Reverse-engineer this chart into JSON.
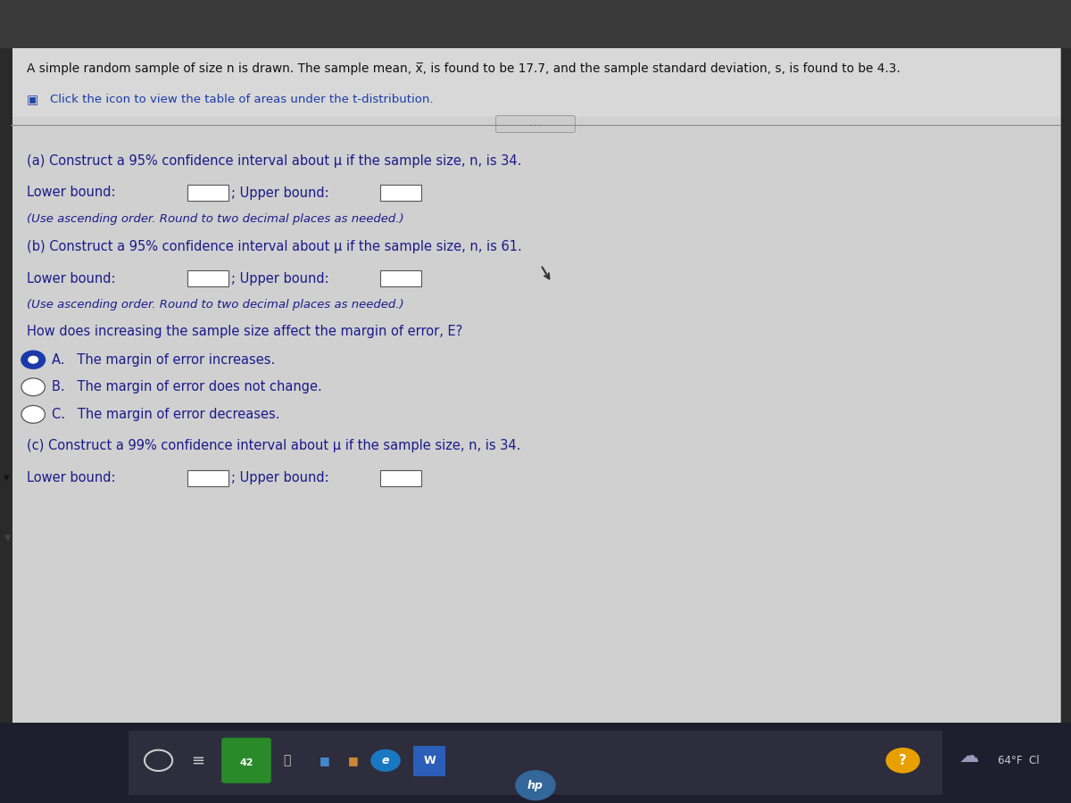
{
  "header_text": "A simple random sample of size n is drawn. The sample mean, x̅, is found to be 17.7, and the sample standard deviation, s, is found to be 4.3.",
  "subheader_text": "Click the icon to view the table of areas under the t-distribution.",
  "part_a_label": "(a) Construct a 95% confidence interval about μ if the sample size, n, is 34.",
  "part_a_lower": "Lower bound:",
  "part_a_upper": "; Upper bound:",
  "part_a_note": "(Use ascending order. Round to two decimal places as needed.)",
  "part_b_label": "(b) Construct a 95% confidence interval about μ if the sample size, n, is 61.",
  "part_b_lower": "Lower bound:",
  "part_b_upper": "; Upper bound:",
  "part_b_note": "(Use ascending order. Round to two decimal places as needed.)",
  "question_margin": "How does increasing the sample size affect the margin of error, E?",
  "choice_a": "A.   The margin of error increases.",
  "choice_b": "B.   The margin of error does not change.",
  "choice_c": "C.   The margin of error decreases.",
  "part_c_label": "(c) Construct a 99% confidence interval about μ if the sample size, n, is 34.",
  "part_c_lower": "Lower bound:",
  "part_c_upper": "; Upper bound:",
  "text_blue": "#1a1a8c",
  "text_black": "#111111",
  "bg_dark": "#2a2a2a",
  "bg_content": "#d0d0d0",
  "bg_header": "#d8d8d8",
  "bg_taskbar": "#1e1e2e",
  "font_size_header": 9.8,
  "font_size_body": 10.5,
  "font_size_note": 9.5
}
